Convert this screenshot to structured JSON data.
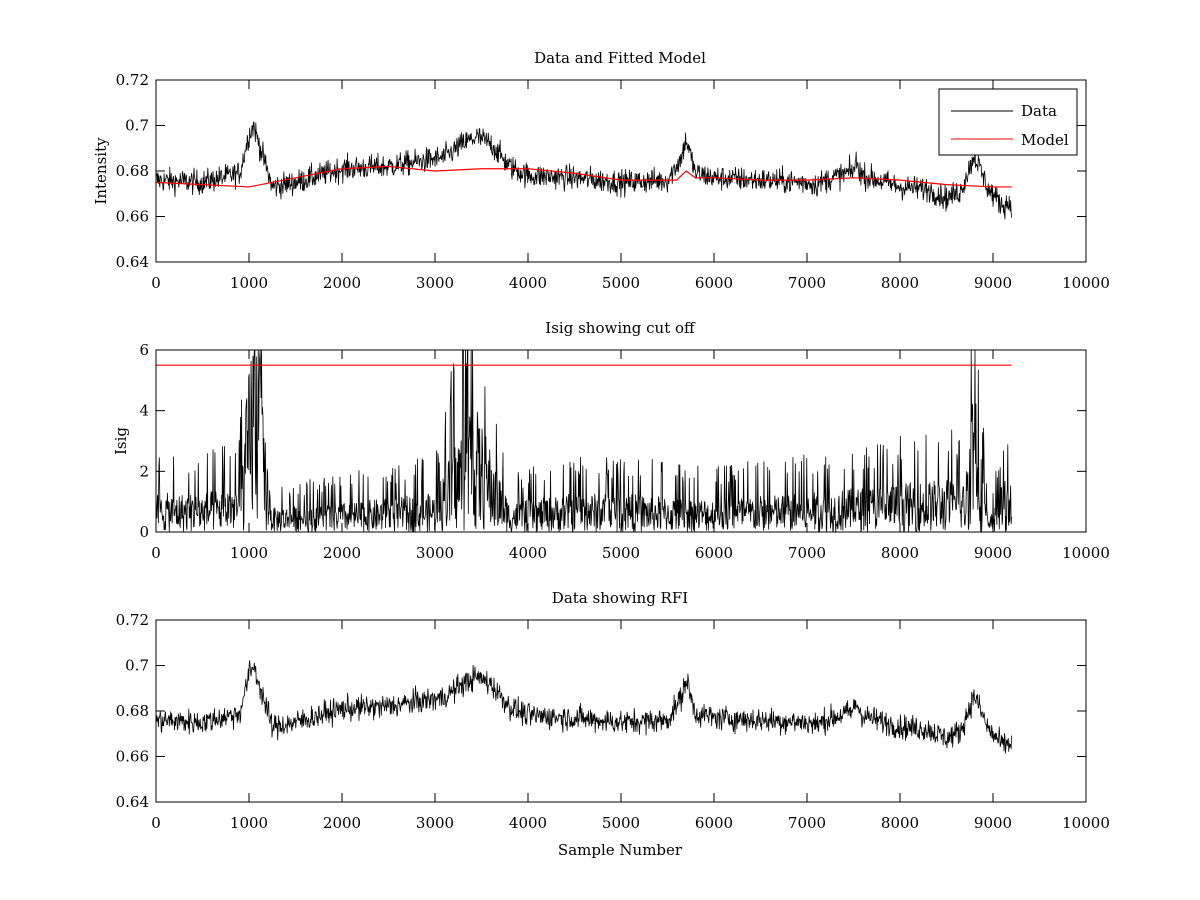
{
  "chart_data": [
    {
      "type": "line",
      "title": "Data and Fitted Model",
      "xlabel": "",
      "ylabel": "Intensity",
      "xlim": [
        0,
        10000
      ],
      "ylim": [
        0.64,
        0.72
      ],
      "xticks": [
        "0",
        "1000",
        "2000",
        "3000",
        "4000",
        "5000",
        "6000",
        "7000",
        "8000",
        "9000",
        "10000"
      ],
      "yticks": [
        "0.64",
        "0.66",
        "0.68",
        "0.7",
        "0.72"
      ],
      "ytick_values": [
        0.64,
        0.66,
        0.68,
        0.7,
        0.72
      ],
      "grid": false,
      "legend": {
        "placement": "top-right",
        "entries": [
          "Data",
          "Model"
        ]
      },
      "series": [
        {
          "name": "Data",
          "color": "#000000",
          "style": "noisy",
          "noise_amplitude": 0.007,
          "x": [
            0,
            500,
            900,
            1000,
            1050,
            1100,
            1250,
            1500,
            2000,
            2500,
            2800,
            3100,
            3300,
            3450,
            3600,
            3800,
            4000,
            4500,
            5000,
            5500,
            5650,
            5700,
            5800,
            6000,
            6500,
            7000,
            7100,
            7200,
            7500,
            7520,
            7600,
            8000,
            8300,
            8500,
            8650,
            8800,
            8950,
            9100,
            9200
          ],
          "y": [
            0.676,
            0.675,
            0.679,
            0.696,
            0.7,
            0.693,
            0.673,
            0.675,
            0.681,
            0.682,
            0.684,
            0.686,
            0.692,
            0.695,
            0.692,
            0.682,
            0.678,
            0.677,
            0.675,
            0.676,
            0.686,
            0.694,
            0.679,
            0.677,
            0.676,
            0.675,
            0.674,
            0.676,
            0.68,
            0.684,
            0.678,
            0.673,
            0.672,
            0.668,
            0.671,
            0.687,
            0.672,
            0.665,
            0.666
          ]
        },
        {
          "name": "Model",
          "color": "#ff0000",
          "style": "smooth",
          "x": [
            0,
            500,
            1000,
            1500,
            2000,
            2500,
            3000,
            3500,
            4000,
            4500,
            5000,
            5600,
            5700,
            5800,
            6000,
            6500,
            7000,
            7500,
            8000,
            8500,
            9000,
            9200
          ],
          "y": [
            0.675,
            0.674,
            0.673,
            0.677,
            0.681,
            0.682,
            0.68,
            0.681,
            0.681,
            0.679,
            0.676,
            0.676,
            0.68,
            0.677,
            0.677,
            0.676,
            0.676,
            0.677,
            0.676,
            0.674,
            0.673,
            0.673
          ]
        }
      ]
    },
    {
      "type": "line",
      "title": "Isig showing cut off",
      "xlabel": "",
      "ylabel": "Isig",
      "xlim": [
        0,
        10000
      ],
      "ylim": [
        0,
        6
      ],
      "xticks": [
        "0",
        "1000",
        "2000",
        "3000",
        "4000",
        "5000",
        "6000",
        "7000",
        "8000",
        "9000",
        "10000"
      ],
      "yticks": [
        "0",
        "2",
        "4",
        "6"
      ],
      "ytick_values": [
        0,
        2,
        4,
        6
      ],
      "grid": false,
      "series": [
        {
          "color": "#000000",
          "style": "spiky",
          "x": [
            0,
            500,
            900,
            1000,
            1050,
            1100,
            1150,
            1250,
            2000,
            3000,
            3200,
            3400,
            3550,
            3800,
            4500,
            5000,
            5700,
            6000,
            7000,
            8000,
            8500,
            8700,
            8750,
            8800,
            8850,
            8950,
            9100,
            9200
          ],
          "y": [
            0.8,
            0.8,
            1.0,
            3.4,
            4.8,
            4.2,
            2.5,
            0.5,
            0.6,
            0.8,
            1.8,
            2.8,
            2.0,
            0.6,
            0.8,
            0.8,
            0.7,
            0.7,
            0.8,
            1.0,
            1.1,
            1.0,
            2.5,
            3.8,
            2.0,
            0.2,
            1.0,
            1.2
          ]
        },
        {
          "color": "#ff0000",
          "style": "flat",
          "x": [
            0,
            9200
          ],
          "y": [
            5.5,
            5.5
          ]
        }
      ]
    },
    {
      "type": "line",
      "title": "Data showing RFI",
      "xlabel": "Sample Number",
      "ylabel": "",
      "xlim": [
        0,
        10000
      ],
      "ylim": [
        0.64,
        0.72
      ],
      "xticks": [
        "0",
        "1000",
        "2000",
        "3000",
        "4000",
        "5000",
        "6000",
        "7000",
        "8000",
        "9000",
        "10000"
      ],
      "yticks": [
        "0.64",
        "0.66",
        "0.68",
        "0.7",
        "0.72"
      ],
      "ytick_values": [
        0.64,
        0.66,
        0.68,
        0.7,
        0.72
      ],
      "grid": false,
      "series": [
        {
          "color": "#000000",
          "style": "noisy",
          "noise_amplitude": 0.007,
          "x": [
            0,
            500,
            900,
            1000,
            1050,
            1100,
            1250,
            1500,
            2000,
            2500,
            2800,
            3100,
            3300,
            3450,
            3600,
            3800,
            4000,
            4500,
            5000,
            5500,
            5650,
            5700,
            5800,
            6000,
            6500,
            7000,
            7100,
            7200,
            7500,
            7520,
            7600,
            8000,
            8300,
            8500,
            8650,
            8800,
            8950,
            9100,
            9200
          ],
          "y": [
            0.676,
            0.675,
            0.679,
            0.696,
            0.7,
            0.693,
            0.673,
            0.675,
            0.681,
            0.682,
            0.684,
            0.686,
            0.692,
            0.695,
            0.692,
            0.682,
            0.678,
            0.677,
            0.675,
            0.676,
            0.686,
            0.694,
            0.679,
            0.677,
            0.676,
            0.675,
            0.674,
            0.676,
            0.68,
            0.684,
            0.678,
            0.673,
            0.672,
            0.668,
            0.671,
            0.687,
            0.672,
            0.665,
            0.666
          ]
        }
      ]
    }
  ]
}
